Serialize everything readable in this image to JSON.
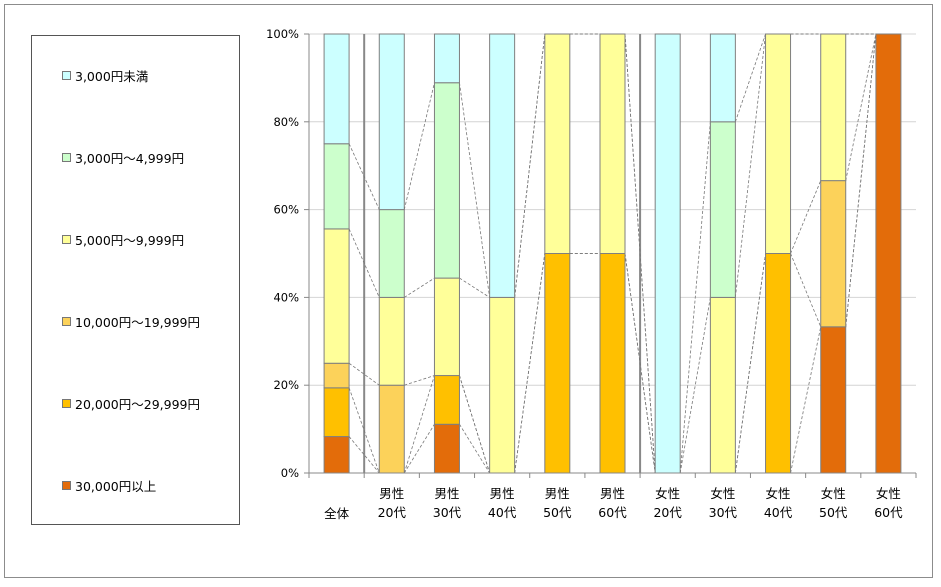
{
  "chart_data": {
    "type": "bar",
    "stacked": true,
    "percent": true,
    "categories": [
      [
        "全体"
      ],
      [
        "男性",
        "20代"
      ],
      [
        "男性",
        "30代"
      ],
      [
        "男性",
        "40代"
      ],
      [
        "男性",
        "50代"
      ],
      [
        "男性",
        "60代"
      ],
      [
        "女性",
        "20代"
      ],
      [
        "女性",
        "30代"
      ],
      [
        "女性",
        "40代"
      ],
      [
        "女性",
        "50代"
      ],
      [
        "女性",
        "60代"
      ]
    ],
    "series": [
      {
        "name": "30,000円以上",
        "color": "#e36c0a",
        "values": [
          8.3,
          0,
          11.1,
          0,
          0,
          0,
          0,
          0,
          0,
          33.3,
          100
        ]
      },
      {
        "name": "20,000円～29,999円",
        "color": "#ffc000",
        "values": [
          11.1,
          0,
          11.1,
          0,
          50,
          50,
          0,
          0,
          50,
          0,
          0
        ]
      },
      {
        "name": "10,000円～19,999円",
        "color": "#fcd25a",
        "values": [
          5.6,
          20,
          0,
          0,
          0,
          0,
          0,
          0,
          0,
          33.3,
          0
        ]
      },
      {
        "name": "5,000円～9,999円",
        "color": "#ffff99",
        "values": [
          30.6,
          20,
          22.2,
          40,
          50,
          50,
          0,
          40,
          50,
          33.4,
          0
        ]
      },
      {
        "name": "3,000円～4,999円",
        "color": "#ccffcc",
        "values": [
          19.4,
          20,
          44.5,
          0,
          0,
          0,
          0,
          40,
          0,
          0,
          0
        ]
      },
      {
        "name": "3,000円未満",
        "color": "#ccffff",
        "values": [
          25,
          40,
          11.1,
          60,
          0,
          0,
          100,
          20,
          0,
          0,
          0
        ]
      }
    ],
    "legend_order": [
      "3,000円未満",
      "3,000円～4,999円",
      "5,000円～9,999円",
      "10,000円～19,999円",
      "20,000円～29,999円",
      "30,000円以上"
    ],
    "yticks": [
      "0%",
      "20%",
      "40%",
      "60%",
      "80%",
      "100%"
    ],
    "ylim": [
      0,
      100
    ],
    "legend_position": "left",
    "series_lines": true,
    "grid": true
  }
}
